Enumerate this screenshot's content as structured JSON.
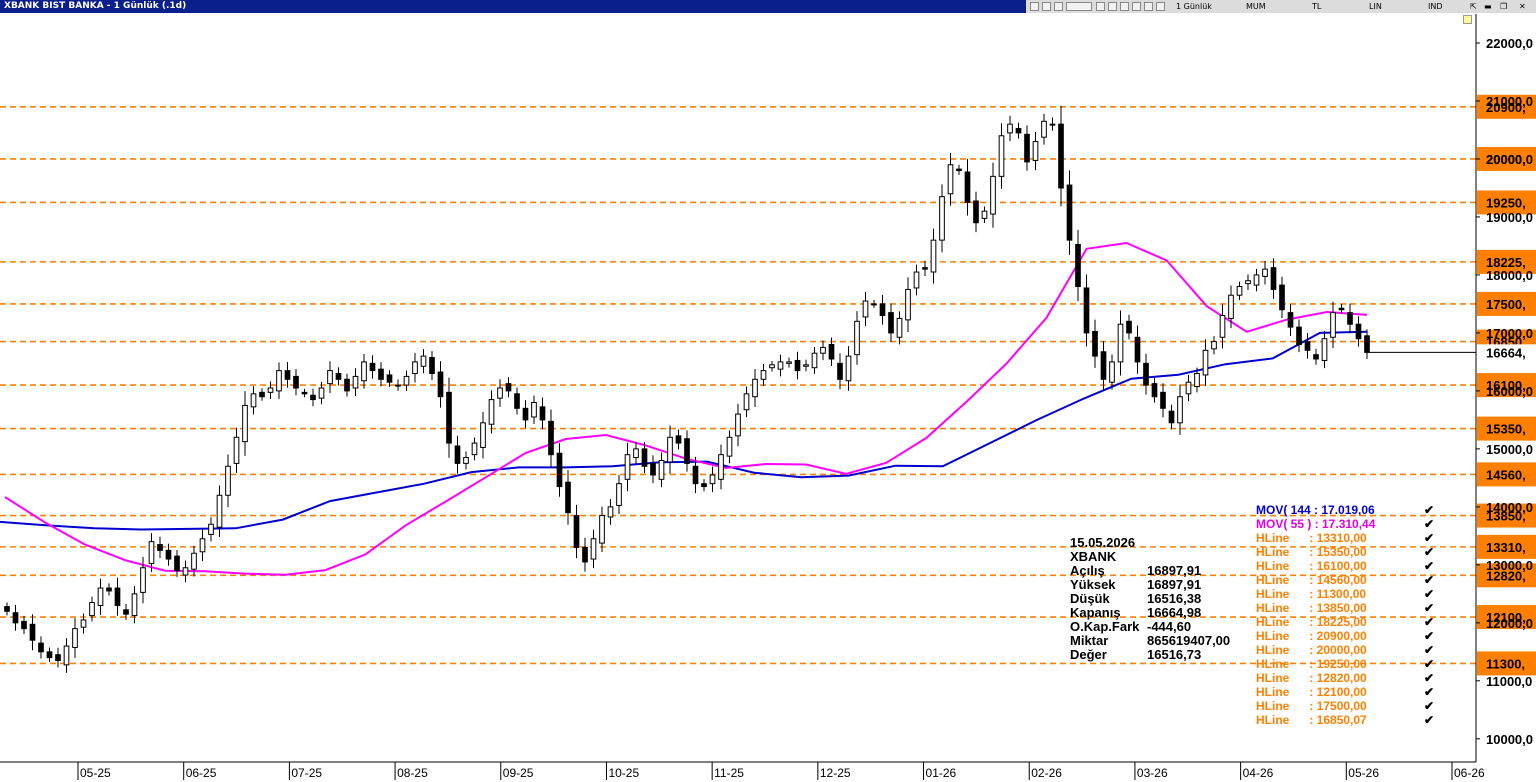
{
  "window": {
    "title": "XBANK BIST BANKA - 1 Günlük (.1d)",
    "toolbar": {
      "period": "1 Günlük",
      "style": "MUM",
      "currency": "TL",
      "scale": "LIN",
      "indicators": "IND"
    }
  },
  "chart_data": {
    "type": "candlestick",
    "y_axis": {
      "min": 9600,
      "max": 22500,
      "tick_labels": [
        "22000,0",
        "21000,0",
        "20000,0",
        "19000,0",
        "18000,0",
        "17000,0",
        "16000,0",
        "15000,0",
        "14000,0",
        "13000,0",
        "12000,0",
        "11000,0",
        "10000,0"
      ]
    },
    "x_axis": {
      "tick_labels": [
        "05-25",
        "06-25",
        "07-25",
        "08-25",
        "09-25",
        "10-25",
        "11-25",
        "12-25",
        "01-26",
        "02-26",
        "03-26",
        "04-26",
        "05-26",
        "06-26"
      ]
    },
    "hlines": [
      {
        "value": 20900,
        "label": "20900,"
      },
      {
        "value": 20000,
        "label": "20000,"
      },
      {
        "value": 19250,
        "label": "19250,"
      },
      {
        "value": 18225,
        "label": "18225,"
      },
      {
        "value": 17500,
        "label": "17500,"
      },
      {
        "value": 16850,
        "label": "16850,"
      },
      {
        "value": 16100,
        "label": "16100,"
      },
      {
        "value": 15350,
        "label": "15350,"
      },
      {
        "value": 14560,
        "label": "14560,"
      },
      {
        "value": 13850,
        "label": "13850,"
      },
      {
        "value": 13310,
        "label": "13310,"
      },
      {
        "value": 12820,
        "label": "12820,"
      },
      {
        "value": 12100,
        "label": "12100,"
      },
      {
        "value": 11300,
        "label": "11300,"
      }
    ],
    "last_price_label": "16664,",
    "last_price": 16664.98,
    "closes": [
      12200,
      12000,
      11900,
      11700,
      11500,
      11400,
      11350,
      11600,
      11900,
      12050,
      12350,
      12600,
      12550,
      12300,
      12150,
      12500,
      12950,
      13400,
      13250,
      13100,
      12900,
      12950,
      13200,
      13450,
      13700,
      14200,
      14700,
      15200,
      15750,
      15950,
      15900,
      16050,
      16350,
      16200,
      16050,
      15950,
      15850,
      16050,
      16350,
      16200,
      16000,
      16250,
      16500,
      16350,
      16200,
      16150,
      16100,
      16250,
      16500,
      16600,
      16300,
      15900,
      15100,
      14750,
      14850,
      15100,
      15450,
      15850,
      16050,
      16000,
      15700,
      15500,
      15800,
      15500,
      14900,
      14350,
      13900,
      13300,
      13050,
      13450,
      13850,
      14000,
      14400,
      14900,
      15000,
      14700,
      14550,
      14800,
      15200,
      15100,
      14750,
      14400,
      14350,
      14550,
      14900,
      15200,
      15600,
      15950,
      16200,
      16350,
      16450,
      16500,
      16500,
      16350,
      16450,
      16650,
      16750,
      16550,
      16200,
      16600,
      17200,
      17550,
      17500,
      17300,
      17000,
      17250,
      17750,
      18050,
      18100,
      18600,
      19350,
      19900,
      19800,
      19250,
      18900,
      19100,
      19700,
      20400,
      20600,
      20450,
      19950,
      20300,
      20650,
      20600,
      19500,
      18600,
      17800,
      17000,
      16600,
      16200,
      16500,
      17150,
      17000,
      16500,
      16100,
      15900,
      15700,
      15450,
      15900,
      16150,
      16300,
      16700,
      16850,
      17300,
      17650,
      17800,
      17900,
      18000,
      18100,
      17750,
      17400,
      17100,
      16800,
      16700,
      16550,
      16900,
      17350,
      17400,
      17150,
      16900,
      16664.98
    ],
    "mov144": [
      13740,
      13680,
      13630,
      13610,
      13620,
      13630,
      13780,
      14100,
      14250,
      14400,
      14600,
      14680,
      14680,
      14700,
      14770,
      14780,
      14590,
      14510,
      14540,
      14710,
      14700,
      15100,
      15500,
      15870,
      16210,
      16280,
      16460,
      16560,
      17000,
      17019
    ],
    "mov55": [
      14170,
      13730,
      13350,
      13080,
      12900,
      12890,
      12850,
      12830,
      12910,
      13180,
      13680,
      14090,
      14510,
      14930,
      15170,
      15240,
      15060,
      14830,
      14670,
      14740,
      14730,
      14570,
      14760,
      15190,
      15810,
      16470,
      17260,
      18450,
      18550,
      18250,
      17460,
      17020,
      17230,
      17360,
      17310
    ]
  },
  "info_box": {
    "date": "15.05.2026",
    "symbol": "XBANK",
    "rows": [
      {
        "label": "Açılış",
        "value": "16897,91"
      },
      {
        "label": "Yüksek",
        "value": "16897,91"
      },
      {
        "label": "Düşük",
        "value": "16516,38"
      },
      {
        "label": "Kapanış",
        "value": "16664,98"
      },
      {
        "label": "O.Kap.Fark",
        "value": "-444,60"
      },
      {
        "label": "Miktar",
        "value": "865619407,00"
      },
      {
        "label": "Değer",
        "value": "16516,73"
      }
    ]
  },
  "legend": [
    {
      "text": "MOV( 144 : 17.019,06",
      "color": "#0000d0"
    },
    {
      "text": "MOV( 55 ) : 17.310,44",
      "color": "#e000e0"
    },
    {
      "text": "HLine      : 13310,00",
      "color": "#ff8000"
    },
    {
      "text": "HLine      : 15350,00",
      "color": "#ff8000"
    },
    {
      "text": "HLine      : 16100,00",
      "color": "#ff8000"
    },
    {
      "text": "HLine      : 14560,00",
      "color": "#ff8000"
    },
    {
      "text": "HLine      : 11300,00",
      "color": "#ff8000"
    },
    {
      "text": "HLine      : 13850,00",
      "color": "#ff8000"
    },
    {
      "text": "HLine      : 18225,00",
      "color": "#ff8000"
    },
    {
      "text": "HLine      : 20900,00",
      "color": "#ff8000"
    },
    {
      "text": "HLine      : 20000,00",
      "color": "#ff8000"
    },
    {
      "text": "HLine      : 19250,00",
      "color": "#ff8000"
    },
    {
      "text": "HLine      : 12820,00",
      "color": "#ff8000"
    },
    {
      "text": "HLine      : 12100,00",
      "color": "#ff8000"
    },
    {
      "text": "HLine      : 17500,00",
      "color": "#ff8000"
    },
    {
      "text": "HLine      : 16850,07",
      "color": "#ff8000"
    }
  ],
  "colors": {
    "hline": "#ff8000",
    "mov144": "#0000d0",
    "mov55": "#ff00ff",
    "candle": "#000000",
    "axis_label_bg": "#ff8000",
    "title_bg": "#0a1f8c"
  }
}
